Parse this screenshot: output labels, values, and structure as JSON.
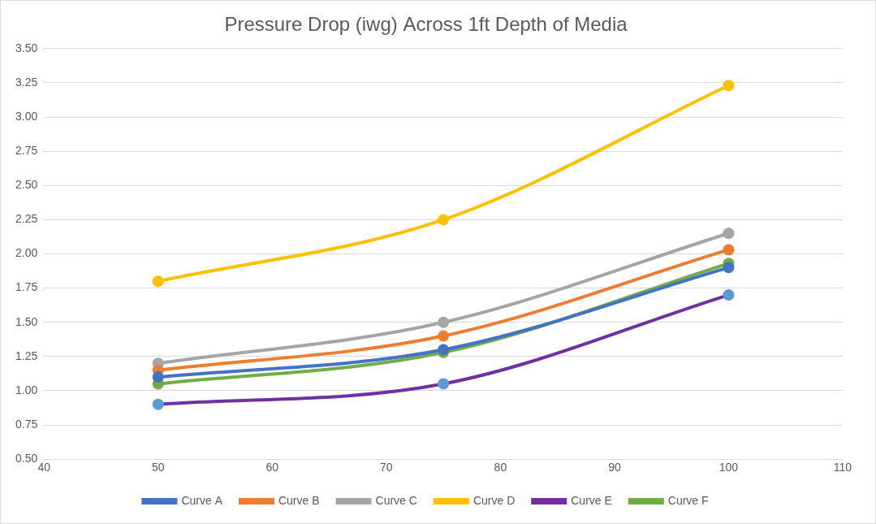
{
  "chart_data": {
    "type": "line",
    "title": "Pressure Drop (iwg) Across 1ft Depth of Media",
    "x": [
      50,
      75,
      100
    ],
    "xlim": [
      40,
      110
    ],
    "xticks": [
      40,
      50,
      60,
      70,
      80,
      90,
      100,
      110
    ],
    "ylim": [
      0.5,
      3.5
    ],
    "yticks": [
      {
        "value": 0.5,
        "label": "0.50"
      },
      {
        "value": 0.75,
        "label": "0.75"
      },
      {
        "value": 1,
        "label": "1.00"
      },
      {
        "value": 1.25,
        "label": "1.25"
      },
      {
        "value": 1.5,
        "label": "1.50"
      },
      {
        "value": 1.75,
        "label": "1.75"
      },
      {
        "value": 2,
        "label": "2.00"
      },
      {
        "value": 2.25,
        "label": "2.25"
      },
      {
        "value": 2.5,
        "label": "2.50"
      },
      {
        "value": 2.75,
        "label": "2.75"
      },
      {
        "value": 3,
        "label": "3.00"
      },
      {
        "value": 3.25,
        "label": "3.25"
      },
      {
        "value": 3.5,
        "label": "3.50"
      }
    ],
    "grid": "y",
    "legend": "bottom",
    "marker": "circle",
    "series": [
      {
        "name": "Curve A",
        "color": "#4472c4",
        "values": [
          1.1,
          1.3,
          1.9
        ]
      },
      {
        "name": "Curve B",
        "color": "#ed7d31",
        "values": [
          1.15,
          1.4,
          2.03
        ]
      },
      {
        "name": "Curve C",
        "color": "#a5a5a5",
        "values": [
          1.2,
          1.5,
          2.15
        ]
      },
      {
        "name": "Curve D",
        "color": "#ffc000",
        "values": [
          1.8,
          2.25,
          3.23
        ]
      },
      {
        "name": "Curve E",
        "color": "#7030a0",
        "colors": [
          "#5b9bd5",
          "#5b9bd5",
          "#5b9bd5"
        ],
        "values": [
          0.9,
          1.05,
          1.7
        ]
      },
      {
        "name": "Curve F",
        "color": "#70ad47",
        "values": [
          1.05,
          1.28,
          1.93
        ]
      }
    ]
  }
}
